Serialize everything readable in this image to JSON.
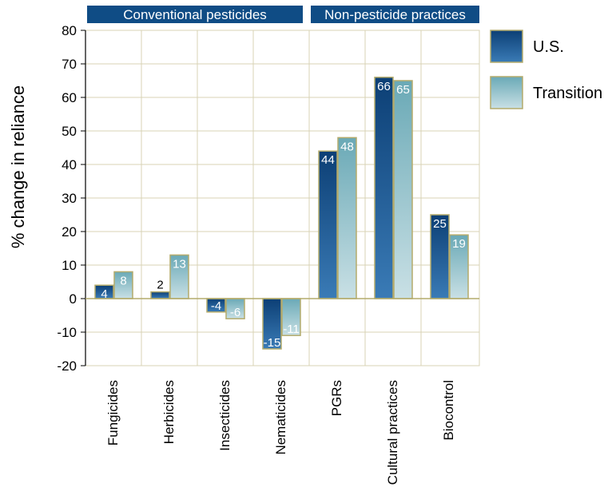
{
  "chart_data": {
    "type": "bar",
    "categories": [
      "Fungicides",
      "Herbicides",
      "Insecticides",
      "Nematicides",
      "PGRs",
      "Cultural practices",
      "Biocontrol"
    ],
    "series": [
      {
        "name": "U.S.",
        "values": [
          4,
          2,
          -4,
          -15,
          44,
          66,
          25
        ],
        "labels": [
          "4",
          "2",
          "-4",
          "-15",
          "44",
          "66",
          "25"
        ]
      },
      {
        "name": "Transition",
        "values": [
          8,
          13,
          -6,
          -11,
          48,
          65,
          19
        ],
        "labels": [
          "8",
          "13",
          "-6",
          "-11",
          "48",
          "65",
          "19"
        ]
      }
    ],
    "ylabel": "% change in reliance",
    "xlabel": "",
    "ylim": [
      -20,
      80
    ],
    "yticks": [
      -20,
      -10,
      0,
      10,
      20,
      30,
      40,
      50,
      60,
      70,
      80
    ],
    "grid": true,
    "legend": "right",
    "groups": [
      {
        "label": "Conventional pesticides",
        "categories": [
          "Fungicides",
          "Herbicides",
          "Insecticides",
          "Nematicides"
        ]
      },
      {
        "label": "Non-pesticide practices",
        "categories": [
          "PGRs",
          "Cultural practices",
          "Biocontrol"
        ]
      }
    ],
    "colors": {
      "us_dark": "#0c3f75",
      "us_light": "#3a7bb6",
      "transition_dark": "#6aa9b6",
      "transition_light": "#c9e0e5",
      "bar_border": "#b4ab6c",
      "group_header": "#0f4c85",
      "grid": "#d9d3b6",
      "axis": "#000000"
    }
  }
}
